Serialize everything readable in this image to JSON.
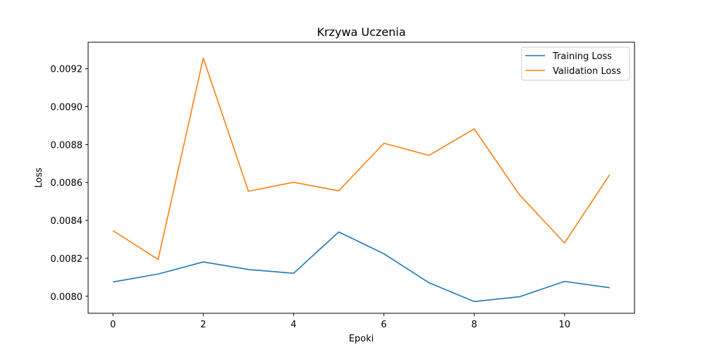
{
  "chart_data": {
    "type": "line",
    "title": "Krzywa Uczenia",
    "xlabel": "Epoki",
    "ylabel": "Loss",
    "x": [
      0,
      1,
      2,
      3,
      4,
      5,
      6,
      7,
      8,
      9,
      10,
      11
    ],
    "xlim": [
      -0.55,
      11.55
    ],
    "ylim": [
      0.00791,
      0.00934
    ],
    "xticks": [
      0,
      2,
      4,
      6,
      8,
      10
    ],
    "xtick_labels": [
      "0",
      "2",
      "4",
      "6",
      "8",
      "10"
    ],
    "yticks": [
      0.008,
      0.0082,
      0.0084,
      0.0086,
      0.0088,
      0.009,
      0.0092
    ],
    "ytick_labels": [
      "0.0080",
      "0.0082",
      "0.0084",
      "0.0086",
      "0.0088",
      "0.0090",
      "0.0092"
    ],
    "grid": false,
    "legend_position": "top-right",
    "series": [
      {
        "name": "Training Loss",
        "color": "#1f77b4",
        "values": [
          0.008075,
          0.008117,
          0.008181,
          0.008141,
          0.008121,
          0.008339,
          0.008224,
          0.008071,
          0.007972,
          0.007997,
          0.008078,
          0.008045
        ]
      },
      {
        "name": "Validation Loss",
        "color": "#ff7f0e",
        "values": [
          0.008346,
          0.008194,
          0.009256,
          0.008554,
          0.008601,
          0.008556,
          0.008807,
          0.008743,
          0.008883,
          0.008536,
          0.008281,
          0.008641
        ]
      }
    ]
  }
}
